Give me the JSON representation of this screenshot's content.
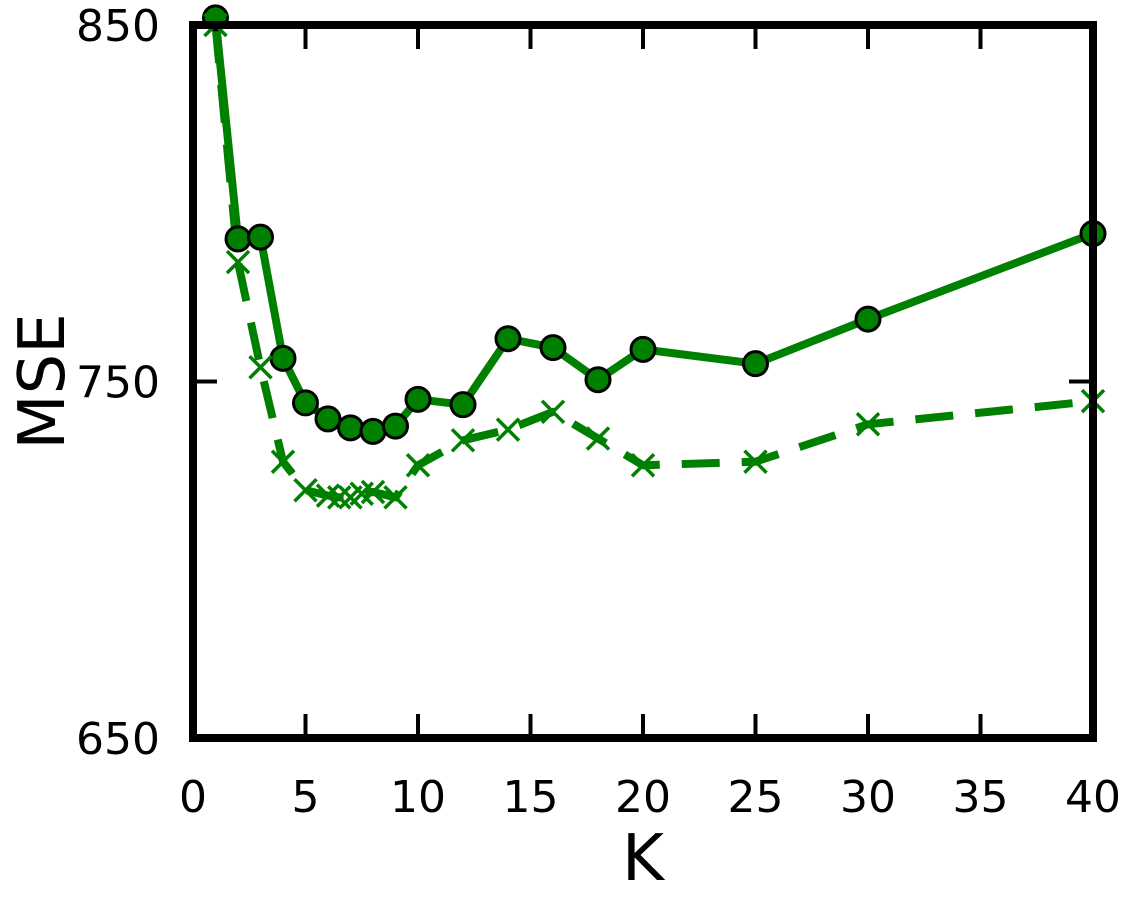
{
  "chart_data": {
    "type": "line",
    "title": "",
    "xlabel": "K",
    "ylabel": "MSE",
    "xlim": [
      0,
      40
    ],
    "ylim": [
      650,
      850
    ],
    "xticks": [
      0,
      5,
      10,
      15,
      20,
      25,
      30,
      35,
      40
    ],
    "yticks": [
      650,
      750,
      850
    ],
    "grid": false,
    "legend": "none",
    "series": [
      {
        "style": "solid",
        "marker": "circle",
        "color": "#008000",
        "x": [
          1,
          2,
          3,
          4,
          5,
          6,
          7,
          8,
          9,
          10,
          12,
          14,
          16,
          18,
          20,
          25,
          30,
          40
        ],
        "y": [
          852,
          790,
          790.5,
          756.5,
          744,
          739.5,
          737,
          736,
          737.5,
          745,
          743.5,
          762,
          759.5,
          750.5,
          759,
          755,
          767.5,
          791.5
        ]
      },
      {
        "style": "dashed",
        "marker": "x",
        "color": "#008000",
        "x": [
          1,
          2,
          3,
          4,
          5,
          6,
          6.5,
          7,
          7.5,
          8,
          9,
          10,
          12,
          14,
          16,
          18,
          20,
          25,
          30,
          40
        ],
        "y": [
          850,
          783.5,
          754,
          727.5,
          719.5,
          718,
          717.5,
          717.5,
          718.5,
          719,
          717.5,
          726.5,
          733.5,
          736.5,
          741.5,
          734,
          726.5,
          727.5,
          738,
          744.5
        ]
      }
    ]
  }
}
